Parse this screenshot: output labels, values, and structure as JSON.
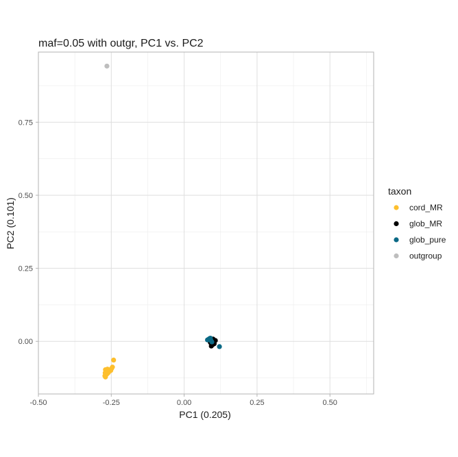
{
  "chart_data": {
    "type": "scatter",
    "title": "maf=0.05 with outgr, PC1 vs. PC2",
    "xlabel": "PC1 (0.205)",
    "ylabel": "PC2 (0.101)",
    "xlim": [
      -0.5,
      0.65
    ],
    "ylim": [
      -0.18,
      0.99
    ],
    "x_ticks": [
      -0.5,
      -0.25,
      0.0,
      0.25,
      0.5
    ],
    "x_tick_labels": [
      "-0.50",
      "-0.25",
      "0.00",
      "0.25",
      "0.50"
    ],
    "y_ticks": [
      0.0,
      0.25,
      0.5,
      0.75
    ],
    "y_tick_labels": [
      "0.00",
      "0.25",
      "0.50",
      "0.75"
    ],
    "grid": true,
    "legend": {
      "title": "taxon",
      "position": "right"
    },
    "series": [
      {
        "name": "cord_MR",
        "color": "#FDBF2D",
        "points": [
          [
            -0.242,
            -0.064
          ],
          [
            -0.246,
            -0.088
          ],
          [
            -0.249,
            -0.093
          ],
          [
            -0.255,
            -0.098
          ],
          [
            -0.258,
            -0.103
          ],
          [
            -0.262,
            -0.099
          ],
          [
            -0.266,
            -0.101
          ],
          [
            -0.27,
            -0.097
          ],
          [
            -0.261,
            -0.108
          ],
          [
            -0.265,
            -0.112
          ],
          [
            -0.268,
            -0.115
          ],
          [
            -0.272,
            -0.118
          ],
          [
            -0.27,
            -0.122
          ],
          [
            -0.267,
            -0.11
          ],
          [
            -0.259,
            -0.105
          ],
          [
            -0.252,
            -0.1
          ],
          [
            -0.263,
            -0.095
          ],
          [
            -0.271,
            -0.108
          ]
        ]
      },
      {
        "name": "glob_MR",
        "color": "#000000",
        "points": [
          [
            0.095,
            0.006
          ],
          [
            0.1,
            0.0
          ],
          [
            0.107,
            0.003
          ],
          [
            0.103,
            -0.008
          ],
          [
            0.097,
            -0.012
          ],
          [
            0.093,
            -0.016
          ],
          [
            0.09,
            -0.004
          ],
          [
            0.086,
            0.004
          ],
          [
            0.099,
            0.008
          ],
          [
            0.092,
            0.002
          ]
        ]
      },
      {
        "name": "glob_pure",
        "color": "#0B6985",
        "points": [
          [
            0.08,
            0.005
          ],
          [
            0.085,
            0.008
          ],
          [
            0.088,
            0.01
          ],
          [
            0.092,
            0.003
          ],
          [
            0.095,
            -0.002
          ],
          [
            0.121,
            -0.018
          ],
          [
            0.09,
            0.011
          ]
        ]
      },
      {
        "name": "outgroup",
        "color": "#BEBEBE",
        "points": [
          [
            -0.265,
            0.942
          ]
        ]
      }
    ]
  }
}
